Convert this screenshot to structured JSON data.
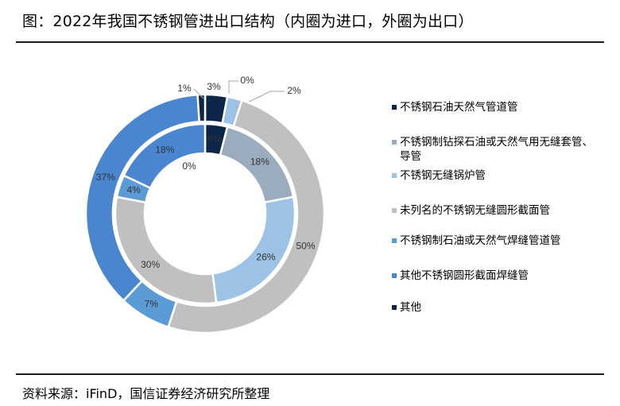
{
  "title": "图：2022年我国不锈钢管进出口结构（内圈为进口，外圈为出口）",
  "source": "资料来源：iFinD，国信证券经济研究所整理",
  "chart_data": {
    "type": "pie",
    "subtype": "donut-nested",
    "categories": [
      "不锈钢石油天然气管道管",
      "不锈钢制钻探石油或天然气用无缝套管、导管",
      "不锈钢无缝锅炉管",
      "未列名的不锈钢无缝圆形截面管",
      "不锈钢制石油或天然气焊缝管道管",
      "其他不锈钢圆形截面焊缝管",
      "其他"
    ],
    "colors": [
      "#0d2548",
      "#9cacbf",
      "#9cc2e6",
      "#c0c0c0",
      "#5b9bd5",
      "#4a86d0",
      "#0d2548"
    ],
    "series": [
      {
        "ring": "inner",
        "values": [
          4,
          18,
          26,
          30,
          4,
          18,
          0
        ],
        "labels": [
          "4%",
          "18%",
          "26%",
          "30%",
          "4%",
          "18%",
          "0%"
        ]
      },
      {
        "ring": "outer",
        "values": [
          3,
          0,
          2,
          50,
          7,
          37,
          1
        ],
        "labels": [
          "3%",
          "0%",
          "2%",
          "50%",
          "7%",
          "37%",
          "1%"
        ]
      }
    ],
    "legend_position": "right"
  }
}
